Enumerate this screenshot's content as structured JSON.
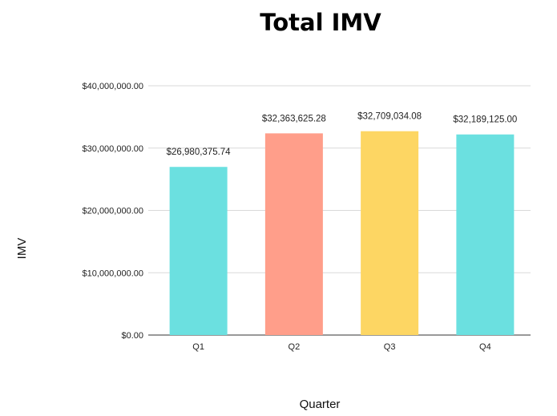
{
  "chart_data": {
    "type": "bar",
    "title": "Total IMV",
    "xlabel": "Quarter",
    "ylabel": "IMV",
    "categories": [
      "Q1",
      "Q2",
      "Q3",
      "Q4"
    ],
    "values": [
      26980375.74,
      32363625.28,
      32709034.08,
      32189125.0
    ],
    "data_labels": [
      "$26,980,375.74",
      "$32,363,625.28",
      "$32,709,034.08",
      "$32,189,125.00"
    ],
    "colors": [
      "#6BE0E0",
      "#FF9E8A",
      "#FDD663",
      "#6BE0E0"
    ],
    "ylim": [
      0,
      40000000
    ],
    "yticks": [
      0,
      10000000,
      20000000,
      30000000,
      40000000
    ],
    "ytick_labels": [
      "$0.00",
      "$10,000,000.00",
      "$20,000,000.00",
      "$30,000,000.00",
      "$40,000,000.00"
    ],
    "grid": true,
    "legend": "none"
  }
}
